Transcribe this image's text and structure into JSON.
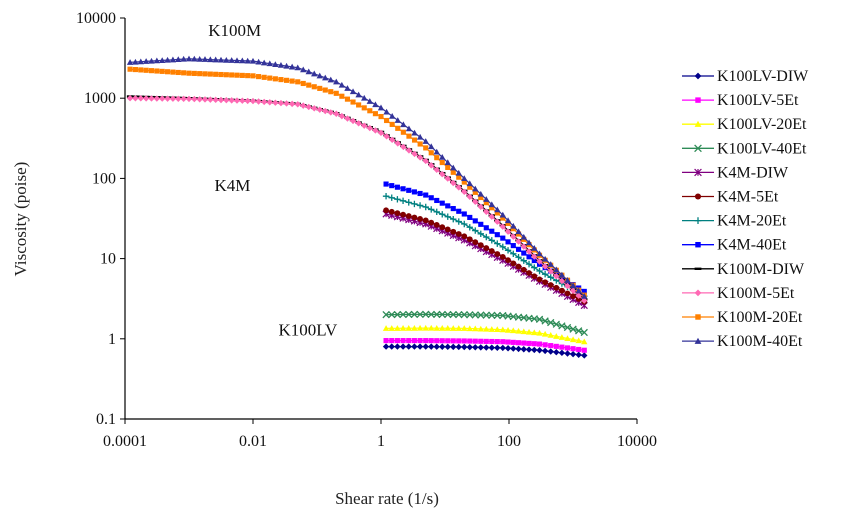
{
  "chart_data": {
    "type": "line",
    "xlabel": "Shear rate (1/s)",
    "ylabel": "Viscosity (poise)",
    "x_scale": "log",
    "y_scale": "log",
    "xlim": [
      0.0001,
      10000
    ],
    "ylim": [
      0.1,
      10000
    ],
    "x_ticks": [
      "0.0001",
      "0.01",
      "1",
      "100",
      "10000"
    ],
    "y_ticks": [
      "0.1",
      "1",
      "10",
      "100",
      "1000",
      "10000"
    ],
    "grid": false,
    "legend_position": "right",
    "annotations": [
      {
        "text": "K100M",
        "x": 0.002,
        "y": 6000
      },
      {
        "text": "K4M",
        "x": 0.0025,
        "y": 70
      },
      {
        "text": "K100LV",
        "x": 0.025,
        "y": 1.1
      }
    ],
    "series": [
      {
        "name": "K100LV-DIW",
        "color": "#00008B",
        "marker": "diamond",
        "x": [
          1.2,
          5,
          20,
          80,
          300,
          1500
        ],
        "y": [
          0.8,
          0.8,
          0.79,
          0.77,
          0.72,
          0.62
        ]
      },
      {
        "name": "K100LV-5Et",
        "color": "#FF00FF",
        "marker": "square",
        "x": [
          1.2,
          5,
          20,
          80,
          300,
          1500
        ],
        "y": [
          0.95,
          0.95,
          0.94,
          0.92,
          0.86,
          0.72
        ]
      },
      {
        "name": "K100LV-20Et",
        "color": "#FFFF00",
        "marker": "triangle",
        "x": [
          1.2,
          5,
          20,
          80,
          300,
          1500
        ],
        "y": [
          1.35,
          1.36,
          1.35,
          1.3,
          1.18,
          0.92
        ]
      },
      {
        "name": "K100LV-40Et",
        "color": "#2E8B57",
        "marker": "x",
        "x": [
          1.2,
          5,
          20,
          80,
          300,
          1500
        ],
        "y": [
          2.0,
          2.02,
          2.0,
          1.95,
          1.75,
          1.2
        ]
      },
      {
        "name": "K4M-DIW",
        "color": "#800080",
        "marker": "star",
        "x": [
          1.2,
          5,
          20,
          80,
          300,
          1500
        ],
        "y": [
          36,
          27,
          17,
          9.5,
          5.2,
          2.6
        ]
      },
      {
        "name": "K4M-5Et",
        "color": "#800000",
        "marker": "circle",
        "x": [
          1.2,
          5,
          20,
          80,
          300,
          1500
        ],
        "y": [
          40,
          30,
          19,
          10.5,
          5.5,
          2.9
        ]
      },
      {
        "name": "K4M-20Et",
        "color": "#008080",
        "marker": "plus",
        "x": [
          1.2,
          5,
          20,
          80,
          300,
          1500
        ],
        "y": [
          60,
          44,
          27,
          14,
          7,
          3.4
        ]
      },
      {
        "name": "K4M-40Et",
        "color": "#0000FF",
        "marker": "square",
        "x": [
          1.2,
          5,
          20,
          80,
          300,
          1500
        ],
        "y": [
          85,
          62,
          36,
          18,
          8.5,
          3.9
        ]
      },
      {
        "name": "K100M-DIW",
        "color": "#000000",
        "marker": "dash",
        "x": [
          0.00012,
          0.001,
          0.01,
          0.05,
          0.2,
          1,
          5,
          20,
          80,
          300,
          1500
        ],
        "y": [
          1050,
          1000,
          930,
          850,
          650,
          380,
          170,
          70,
          26,
          9.5,
          3.1
        ]
      },
      {
        "name": "K100M-5Et",
        "color": "#FF69B4",
        "marker": "diamond",
        "x": [
          0.00012,
          0.001,
          0.01,
          0.05,
          0.2,
          1,
          5,
          20,
          80,
          300,
          1500
        ],
        "y": [
          1000,
          980,
          920,
          840,
          640,
          370,
          165,
          68,
          25,
          9.2,
          3.0
        ]
      },
      {
        "name": "K100M-20Et",
        "color": "#FF8000",
        "marker": "square",
        "x": [
          0.00012,
          0.001,
          0.01,
          0.05,
          0.2,
          1,
          5,
          20,
          80,
          300,
          1500
        ],
        "y": [
          2300,
          2050,
          1900,
          1600,
          1150,
          590,
          240,
          90,
          32,
          11,
          3.5
        ]
      },
      {
        "name": "K100M-40Et",
        "color": "#333399",
        "marker": "triangle",
        "x": [
          0.00012,
          0.001,
          0.01,
          0.05,
          0.2,
          1,
          5,
          20,
          80,
          300,
          1500
        ],
        "y": [
          2800,
          3100,
          2900,
          2400,
          1600,
          760,
          290,
          100,
          35,
          11.5,
          3.4
        ]
      }
    ]
  }
}
